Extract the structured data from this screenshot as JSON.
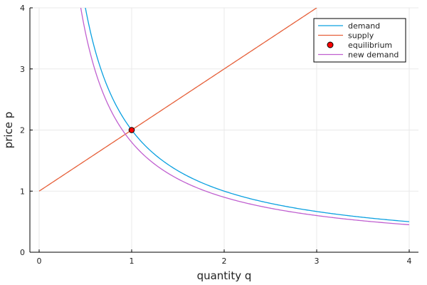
{
  "chart_data": {
    "type": "line",
    "xlabel": "quantity q",
    "ylabel": "price p",
    "xlim": [
      -0.1,
      4.1
    ],
    "ylim": [
      0,
      4
    ],
    "x_ticks": [
      0,
      1,
      2,
      3,
      4
    ],
    "y_ticks": [
      0,
      1,
      2,
      3,
      4
    ],
    "x_tick_labels": [
      "0",
      "1",
      "2",
      "3",
      "4"
    ],
    "y_tick_labels": [
      "0",
      "1",
      "2",
      "3",
      "4"
    ],
    "grid": true,
    "legend_position": "top-right",
    "series": [
      {
        "name": "demand",
        "kind": "line",
        "color": "#0aa0e0",
        "formula": "p = 2 / q",
        "x_range": [
          0.5,
          4
        ]
      },
      {
        "name": "supply",
        "kind": "line",
        "color": "#e6603a",
        "formula": "p = 1 + q",
        "x_range": [
          0,
          3
        ]
      },
      {
        "name": "equilibrium",
        "kind": "scatter",
        "color": "#ff0000",
        "points": [
          [
            1,
            2
          ]
        ]
      },
      {
        "name": "new demand",
        "kind": "line",
        "color": "#c060d0",
        "formula": "p = 1.8 / q",
        "x_range": [
          0.45,
          4
        ]
      }
    ]
  }
}
